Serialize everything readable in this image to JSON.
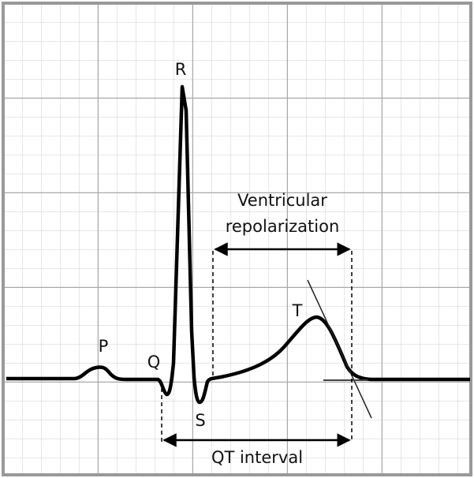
{
  "waves": {
    "p": "P",
    "q": "Q",
    "r": "R",
    "s": "S",
    "t": "T"
  },
  "annotations": {
    "repolarization": [
      "Ventricular",
      "repolarization"
    ],
    "qt": "QT interval"
  }
}
